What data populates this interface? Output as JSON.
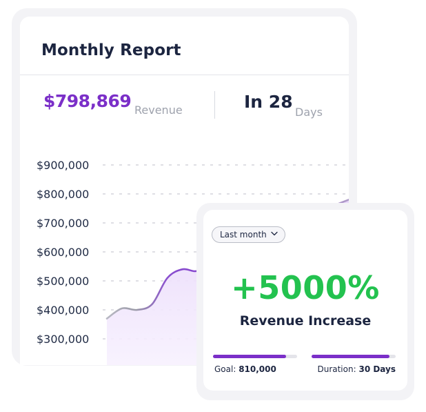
{
  "report": {
    "title": "Monthly Report",
    "revenue_value": "$798,869",
    "revenue_label": "Revenue",
    "days_value": "In 28",
    "days_label": "Days"
  },
  "overlay": {
    "period_select": "Last month",
    "change_value": "+5000%",
    "change_label": "Revenue Increase",
    "goal_label": "Goal:",
    "goal_value": "810,000",
    "goal_progress": 0.87,
    "duration_label": "Duration:",
    "duration_value": "30 Days",
    "duration_progress": 0.93
  },
  "colors": {
    "accent": "#7b2fc8",
    "success": "#23c24f",
    "text": "#1c2540",
    "muted": "#9ea2ad",
    "area_fill": "#efe3fb"
  },
  "chart_data": {
    "type": "area",
    "title": "",
    "xlabel": "",
    "ylabel": "",
    "y_ticks": [
      "$900,000",
      "$800,000",
      "$700,000",
      "$600,000",
      "$500,000",
      "$400,000",
      "$300,000"
    ],
    "y_tick_values": [
      900000,
      800000,
      700000,
      600000,
      500000,
      400000,
      300000
    ],
    "ylim": [
      300000,
      900000
    ],
    "grid": true,
    "series": [
      {
        "values": [
          370000,
          405000,
          400000,
          420000,
          510000,
          540000,
          535000,
          580000,
          640000,
          650000,
          660000,
          700000,
          730000,
          735000,
          740000,
          760000,
          780000
        ]
      }
    ]
  }
}
